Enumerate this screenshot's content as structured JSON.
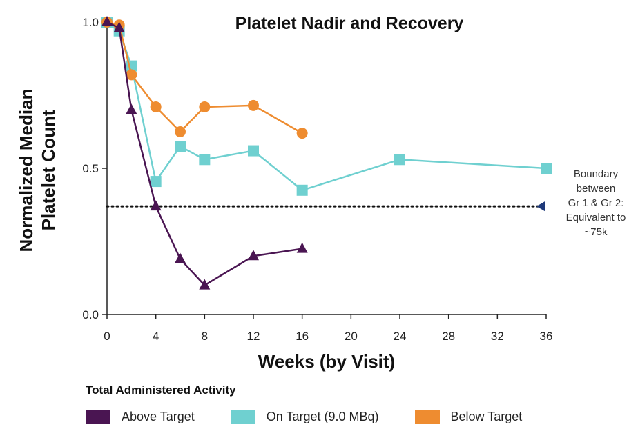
{
  "chart_data": {
    "type": "line",
    "title": "Platelet Nadir and Recovery",
    "xlabel": "Weeks (by Visit)",
    "ylabel": [
      "Normalized Median",
      "Platelet Count"
    ],
    "xlim": [
      0,
      36
    ],
    "ylim": [
      0,
      1.0
    ],
    "x_ticks": [
      0,
      4,
      8,
      12,
      16,
      20,
      24,
      28,
      32,
      36
    ],
    "x_tick_labels": [
      "0",
      "4",
      "8",
      "12",
      "16",
      "20",
      "24",
      "28",
      "32",
      "36"
    ],
    "y_ticks": [
      0,
      0.5,
      1.0
    ],
    "y_tick_labels": [
      "0.0",
      "0.5",
      "1.0"
    ],
    "grid": false,
    "legend_position": "bottom",
    "series": [
      {
        "name": "On Target (9.0 MBq)",
        "color": "#6FD0D0",
        "marker": "square",
        "points": [
          [
            0,
            1.0
          ],
          [
            1,
            0.97
          ],
          [
            2,
            0.85
          ],
          [
            4,
            0.455
          ],
          [
            6,
            0.575
          ],
          [
            8,
            0.53
          ],
          [
            12,
            0.56
          ],
          [
            16,
            0.425
          ],
          [
            24,
            0.53
          ],
          [
            36,
            0.5
          ]
        ]
      },
      {
        "name": "Below Target",
        "color": "#EE8C30",
        "marker": "circle",
        "points": [
          [
            0,
            1.0
          ],
          [
            1,
            0.99
          ],
          [
            2,
            0.82
          ],
          [
            4,
            0.71
          ],
          [
            6,
            0.625
          ],
          [
            8,
            0.71
          ],
          [
            12,
            0.715
          ],
          [
            16,
            0.62
          ]
        ]
      },
      {
        "name": "Above Target",
        "color": "#4A1552",
        "marker": "triangle",
        "points": [
          [
            0,
            1.0
          ],
          [
            1,
            0.98
          ],
          [
            2,
            0.7
          ],
          [
            4,
            0.37
          ],
          [
            6,
            0.19
          ],
          [
            8,
            0.1
          ],
          [
            12,
            0.2
          ],
          [
            16,
            0.225
          ]
        ]
      }
    ],
    "reference_line": {
      "y": 0.37,
      "style": "dotted",
      "color": "#111111",
      "marker_color": "#1F3A7A",
      "label": [
        "Boundary",
        "between",
        "Gr 1 & Gr 2:",
        "Equivalent to",
        "~75k"
      ]
    }
  },
  "legend": {
    "title": "Total Administered Activity",
    "items": [
      {
        "label": "Above Target",
        "color": "#4A1552"
      },
      {
        "label": "On Target (9.0 MBq)",
        "color": "#6FD0D0"
      },
      {
        "label": "Below Target",
        "color": "#EE8C30"
      }
    ]
  }
}
